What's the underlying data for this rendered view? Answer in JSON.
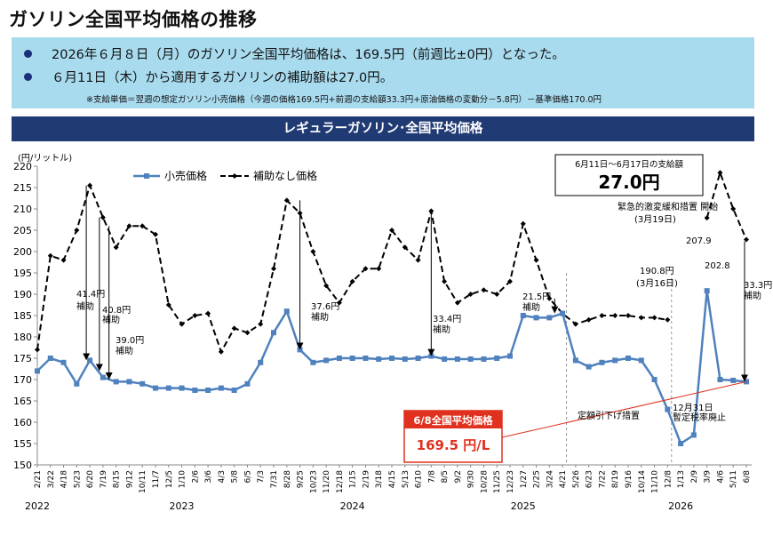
{
  "page_title": "ガソリン全国平均価格の推移",
  "summary": {
    "bullet1": "2026年６月８日（月）のガソリン全国平均価格は、169.5円（前週比±0円）となった。",
    "bullet2": "６月11日（木）から適用するガソリンの補助額は27.0円。",
    "note": "※支給単価＝翌週の想定ガソリン小売価格（今週の価格169.5円+前週の支給額33.3円+原油価格の変動分－5.8円）－基準価格170.0円"
  },
  "chart_banner": "レギュラーガソリン･全国平均価格",
  "colors": {
    "retail": "#4f81bd",
    "unsubsidized": "#000000",
    "banner": "#203a73",
    "summary_bg": "#a9dbef",
    "highlight": "#e0301e"
  },
  "chart_data": {
    "type": "line",
    "ylabel": "(円/リットル)",
    "ylim": [
      150,
      220
    ],
    "yticks": [
      150,
      155,
      160,
      165,
      170,
      175,
      180,
      185,
      190,
      195,
      200,
      205,
      210,
      215,
      220
    ],
    "grid": false,
    "legend_position": "top-left",
    "x_tick_labels": [
      "2/21",
      "3/22",
      "4/18",
      "5/23",
      "6/20",
      "7/19",
      "8/15",
      "9/12",
      "10/11",
      "11/7",
      "12/5",
      "1/10",
      "2/6",
      "3/6",
      "4/3",
      "5/8",
      "6/5",
      "7/3",
      "7/31",
      "8/28",
      "9/25",
      "10/23",
      "11/20",
      "12/18",
      "1/15",
      "2/19",
      "3/18",
      "4/15",
      "5/13",
      "6/10",
      "7/8",
      "8/5",
      "9/2",
      "9/30",
      "10/28",
      "11/25",
      "12/23",
      "1/27",
      "2/25",
      "3/24",
      "4/21",
      "5/26",
      "6/23",
      "7/22",
      "8/19",
      "9/16",
      "10/14",
      "11/10",
      "12/8",
      "1/13",
      "2/9",
      "3/9",
      "4/6",
      "5/11",
      "6/8"
    ],
    "years": [
      {
        "label": "2022",
        "at_tick": "2/21"
      },
      {
        "label": "2023",
        "at_tick": "1/10"
      },
      {
        "label": "2024",
        "at_tick": "1/15"
      },
      {
        "label": "2025",
        "at_tick": "1/27"
      },
      {
        "label": "2026",
        "at_tick": "1/13"
      }
    ],
    "series": [
      {
        "name": "小売価格",
        "style": "solid-square-markers",
        "points": [
          [
            "2/21",
            172
          ],
          [
            "3/22",
            175
          ],
          [
            "4/18",
            174
          ],
          [
            "5/23",
            169
          ],
          [
            "6/20",
            174.5
          ],
          [
            "7/19",
            170.5
          ],
          [
            "8/15",
            169.5
          ],
          [
            "9/12",
            169.5
          ],
          [
            "10/11",
            169
          ],
          [
            "11/7",
            168
          ],
          [
            "12/5",
            168
          ],
          [
            "1/10",
            168
          ],
          [
            "2/6",
            167.5
          ],
          [
            "3/6",
            167.5
          ],
          [
            "4/3",
            168
          ],
          [
            "5/8",
            167.5
          ],
          [
            "6/5",
            169
          ],
          [
            "7/3",
            174
          ],
          [
            "7/31",
            181
          ],
          [
            "8/28",
            186
          ],
          [
            "9/25",
            177
          ],
          [
            "10/23",
            174
          ],
          [
            "11/20",
            174.5
          ],
          [
            "12/18",
            175
          ],
          [
            "1/15",
            175
          ],
          [
            "2/19",
            175
          ],
          [
            "3/18",
            174.8
          ],
          [
            "4/15",
            175
          ],
          [
            "5/13",
            174.8
          ],
          [
            "6/10",
            175
          ],
          [
            "7/8",
            175.5
          ],
          [
            "8/5",
            174.8
          ],
          [
            "9/2",
            174.8
          ],
          [
            "9/30",
            174.8
          ],
          [
            "10/28",
            174.8
          ],
          [
            "11/25",
            175
          ],
          [
            "12/23",
            175.5
          ],
          [
            "1/27",
            185
          ],
          [
            "2/25",
            184.5
          ],
          [
            "3/24",
            184.5
          ],
          [
            "4/21",
            185.5
          ],
          [
            "5/26",
            174.5
          ],
          [
            "6/23",
            173
          ],
          [
            "7/22",
            174
          ],
          [
            "8/19",
            174.5
          ],
          [
            "9/16",
            175
          ],
          [
            "10/14",
            174.5
          ],
          [
            "11/10",
            170
          ],
          [
            "12/8",
            163
          ],
          [
            "1/13",
            155
          ],
          [
            "2/9",
            157
          ],
          [
            "3/9",
            190.8
          ],
          [
            "4/6",
            170
          ],
          [
            "5/11",
            169.8
          ],
          [
            "6/8",
            169.5
          ]
        ]
      },
      {
        "name": "補助なし価格",
        "style": "dashed-diamond-markers",
        "points": [
          [
            "2/21",
            177
          ],
          [
            "3/22",
            199
          ],
          [
            "4/18",
            198
          ],
          [
            "5/23",
            205
          ],
          [
            "6/20",
            215.5
          ],
          [
            "7/19",
            208
          ],
          [
            "8/15",
            201
          ],
          [
            "9/12",
            206
          ],
          [
            "10/11",
            206
          ],
          [
            "11/7",
            204
          ],
          [
            "12/5",
            187.5
          ],
          [
            "1/10",
            183
          ],
          [
            "2/6",
            185
          ],
          [
            "3/6",
            185.5
          ],
          [
            "4/3",
            176.5
          ],
          [
            "5/8",
            182
          ],
          [
            "6/5",
            181
          ],
          [
            "7/3",
            183
          ],
          [
            "7/31",
            196
          ],
          [
            "8/28",
            212
          ],
          [
            "9/25",
            209
          ],
          [
            "10/23",
            200
          ],
          [
            "11/20",
            192
          ],
          [
            "12/18",
            188
          ],
          [
            "1/15",
            193
          ],
          [
            "2/19",
            196
          ],
          [
            "3/18",
            196
          ],
          [
            "4/15",
            205
          ],
          [
            "5/13",
            201
          ],
          [
            "6/10",
            198
          ],
          [
            "7/8",
            209.5
          ],
          [
            "8/5",
            193
          ],
          [
            "9/2",
            188
          ],
          [
            "9/30",
            190
          ],
          [
            "10/28",
            191
          ],
          [
            "11/25",
            190
          ],
          [
            "12/23",
            193
          ],
          [
            "1/27",
            206.5
          ],
          [
            "2/25",
            198
          ],
          [
            "3/24",
            189
          ],
          [
            "4/21",
            185.5
          ],
          [
            "5/26",
            183
          ],
          [
            "6/23",
            184
          ],
          [
            "7/22",
            185
          ],
          [
            "8/19",
            185
          ],
          [
            "9/16",
            185
          ],
          [
            "10/14",
            184.5
          ],
          [
            "11/10",
            184.5
          ],
          [
            "12/8",
            184
          ],
          [
            "1/13",
            null
          ],
          [
            "2/9",
            null
          ],
          [
            "3/9",
            207.9
          ],
          [
            "4/6",
            218.5
          ],
          [
            "5/11",
            210
          ],
          [
            "6/8",
            202.8
          ]
        ]
      }
    ],
    "annotations": [
      {
        "text": "41.4円",
        "text2": "補助"
      },
      {
        "text": "40.8円",
        "text2": "補助"
      },
      {
        "text": "39.0円",
        "text2": "補助"
      },
      {
        "text": "37.6円",
        "text2": "補助"
      },
      {
        "text": "33.4円",
        "text2": "補助"
      },
      {
        "text": "21.5円",
        "text2": "補助"
      },
      {
        "text": "190.8円",
        "text2": "(3月16日)"
      },
      {
        "text": "207.9"
      },
      {
        "text": "202.8"
      },
      {
        "text": "33.3円",
        "text2": "補助"
      },
      {
        "text": "緊急的激変緩和措置 開始",
        "text2": "(3月19日)"
      },
      {
        "text": "定額引下げ措置"
      },
      {
        "text": "12月31日",
        "text2": "暫定税率廃止"
      }
    ],
    "subsidy_box": {
      "period": "6月11日～6月17日の支給額",
      "amount": "27.0円"
    },
    "current_price_box": {
      "label": "6/8全国平均価格",
      "value": "169.5 円/L"
    }
  }
}
